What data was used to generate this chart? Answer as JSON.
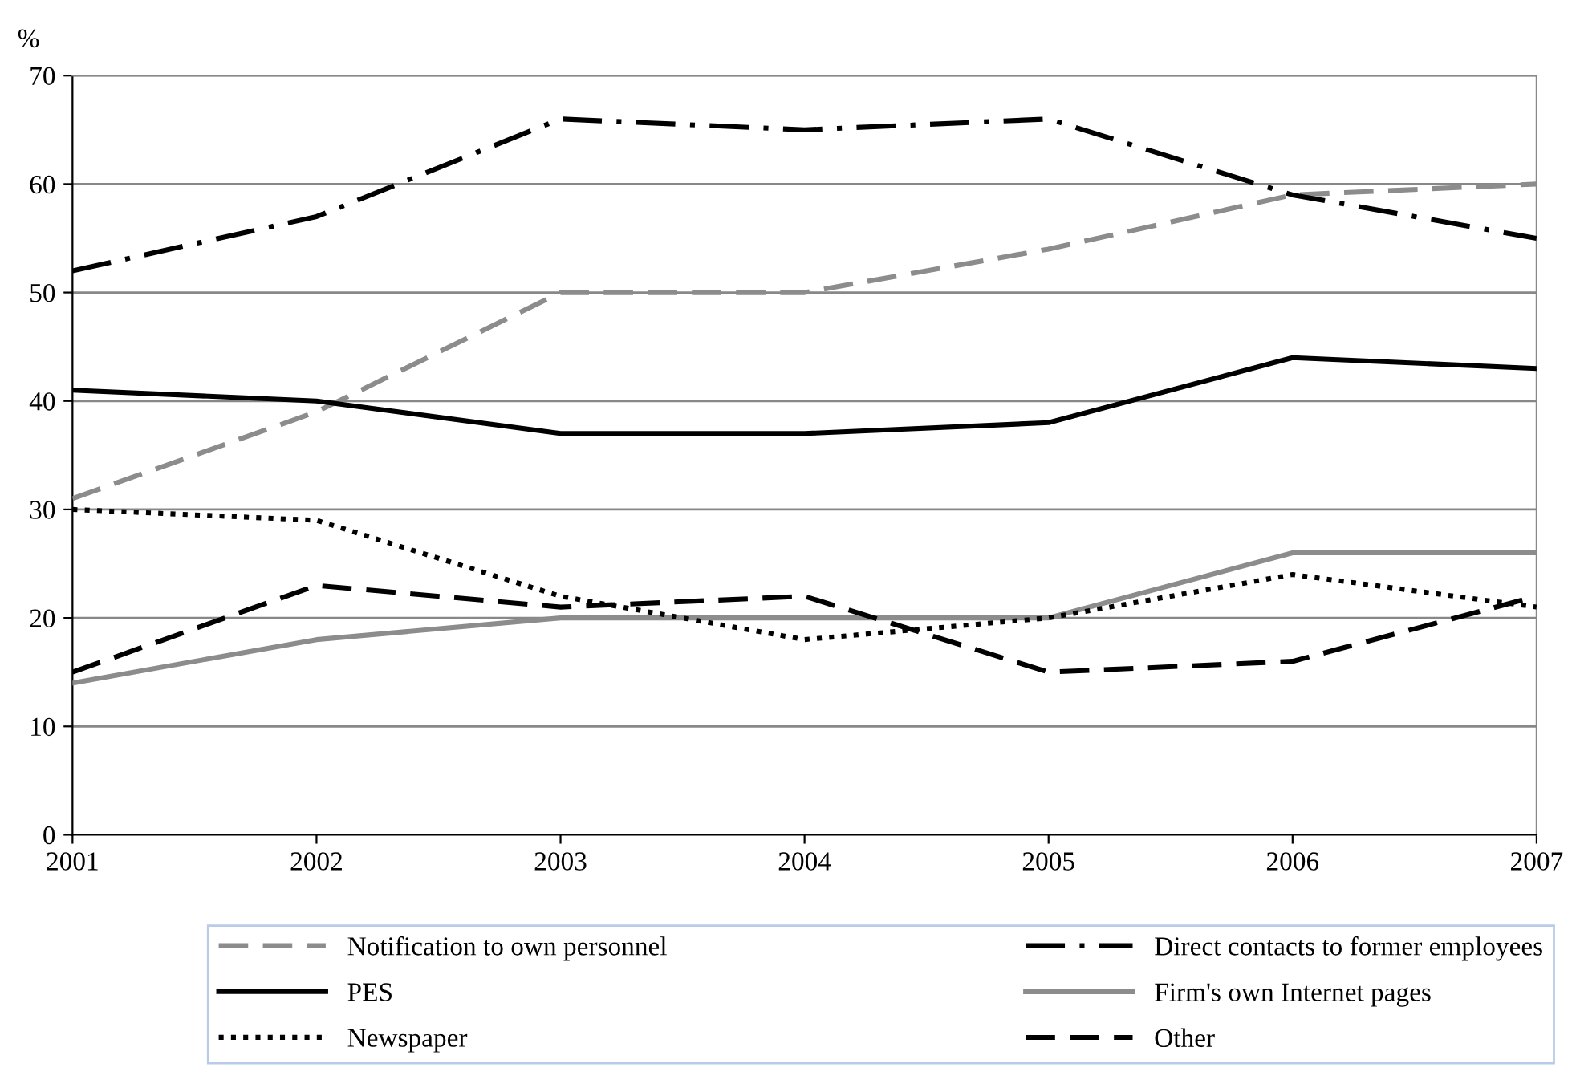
{
  "chart_data": {
    "type": "line",
    "ylabel": "%",
    "x": [
      2001,
      2002,
      2003,
      2004,
      2005,
      2006,
      2007
    ],
    "xlim": [
      2001,
      2007
    ],
    "xticks": [
      2001,
      2002,
      2003,
      2004,
      2005,
      2006,
      2007
    ],
    "ylim": [
      0,
      70
    ],
    "yticks": [
      0,
      10,
      20,
      30,
      40,
      50,
      60,
      70
    ],
    "grid": "y",
    "legend": "bottom",
    "marker": "none",
    "series": [
      {
        "name": "Notification to own personnel",
        "color": "#8c8c8c",
        "line_style": "dashed",
        "values": [
          31,
          39,
          50,
          50,
          54,
          59,
          60
        ]
      },
      {
        "name": "Direct contacts to former employees",
        "color": "#000000",
        "line_style": "dashdot",
        "values": [
          52,
          57,
          66,
          65,
          66,
          59,
          55
        ]
      },
      {
        "name": "PES",
        "color": "#000000",
        "line_style": "solid",
        "values": [
          41,
          40,
          37,
          37,
          38,
          44,
          43
        ]
      },
      {
        "name": "Firm's own Internet pages",
        "color": "#8c8c8c",
        "line_style": "solid",
        "values": [
          14,
          18,
          20,
          20,
          20,
          26,
          26
        ]
      },
      {
        "name": "Newspaper",
        "color": "#000000",
        "line_style": "dotted",
        "values": [
          30,
          29,
          22,
          18,
          20,
          24,
          21
        ]
      },
      {
        "name": "Other",
        "color": "#000000",
        "line_style": "dashed",
        "values": [
          15,
          23,
          21,
          22,
          15,
          16,
          22
        ]
      }
    ]
  }
}
